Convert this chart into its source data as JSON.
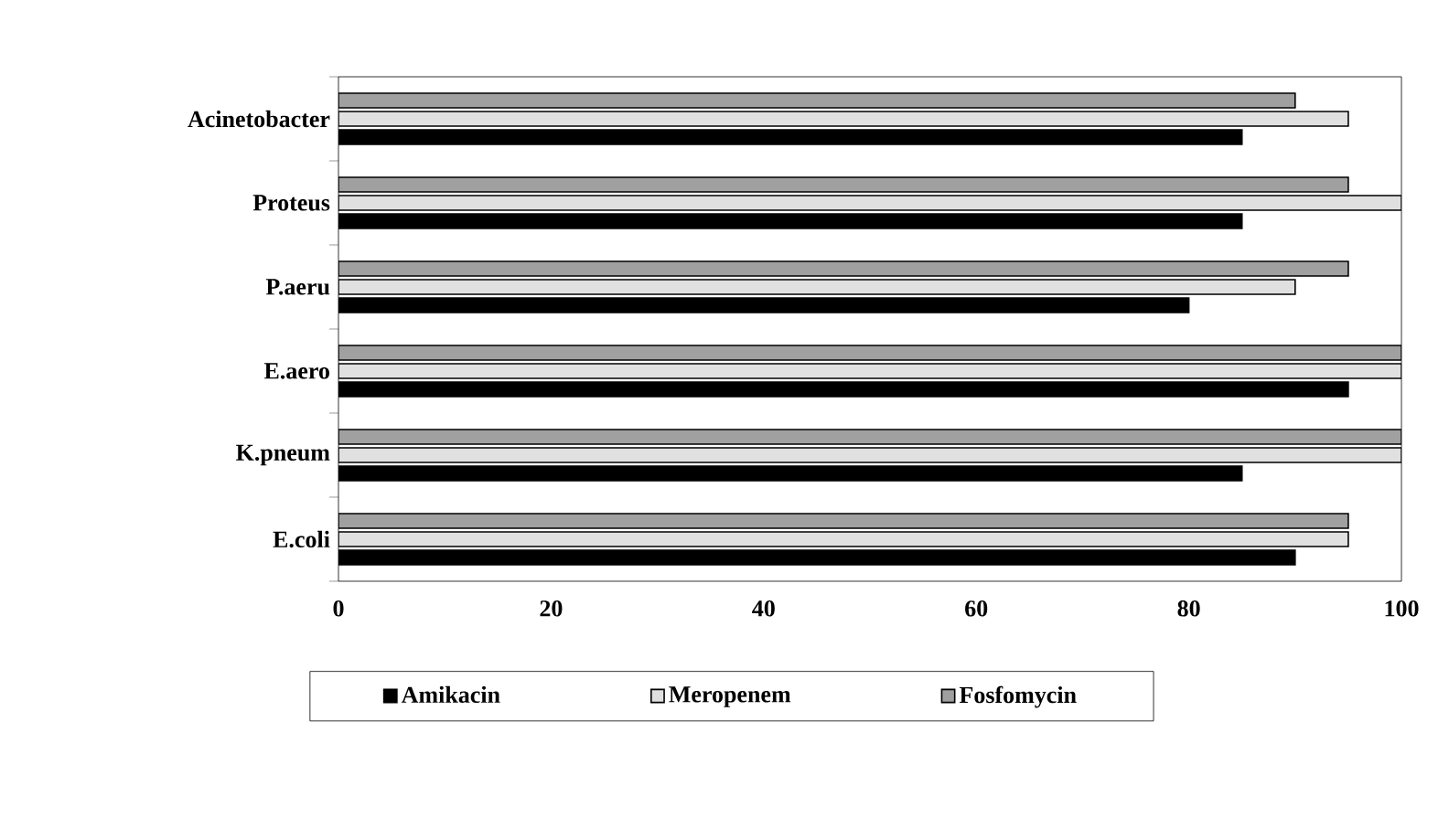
{
  "chart_data": {
    "type": "bar",
    "orientation": "horizontal",
    "categories": [
      "Acinetobacter",
      "Proteus",
      "P.aeru",
      "E.aero",
      "K.pneum",
      "E.coli"
    ],
    "series": [
      {
        "name": "Amikacin",
        "color": "#000000",
        "values": [
          85,
          85,
          80,
          95,
          85,
          90
        ]
      },
      {
        "name": "Meropenem",
        "color": "#e0e0e0",
        "values": [
          95,
          100,
          90,
          100,
          100,
          95
        ]
      },
      {
        "name": "Fosfomycin",
        "color": "#a0a0a0",
        "values": [
          90,
          95,
          95,
          100,
          100,
          95
        ]
      }
    ],
    "xlim": [
      0,
      100
    ],
    "xticks": [
      0,
      20,
      40,
      60,
      80,
      100
    ],
    "grid": false,
    "legend": "bottom"
  }
}
